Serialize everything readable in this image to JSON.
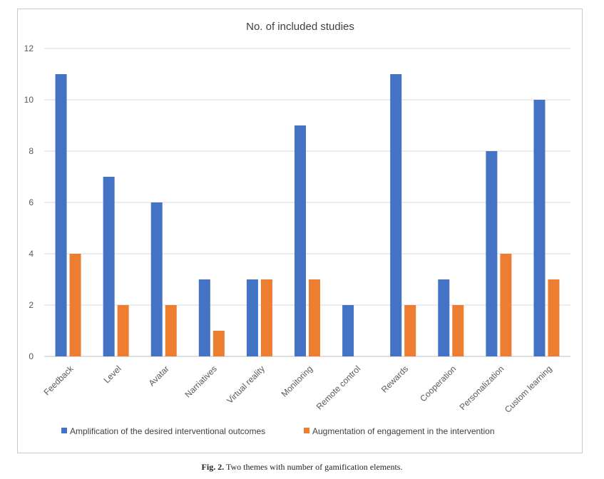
{
  "chart_data": {
    "type": "bar",
    "title": "No. of included studies",
    "categories": [
      "Feedback",
      "Level",
      "Avatar",
      "Narriatives",
      "Virtual reality",
      "Monitoring",
      "Remote control",
      "Rewards",
      "Cooperation",
      "Personalization",
      "Custom learning"
    ],
    "series": [
      {
        "name": "Amplification of the desired interventional outcomes",
        "color": "#4472C4",
        "values": [
          11,
          7,
          6,
          3,
          3,
          9,
          2,
          11,
          3,
          8,
          10
        ]
      },
      {
        "name": "Augmentation of engagement in the intervention",
        "color": "#ED7D31",
        "values": [
          4,
          2,
          2,
          1,
          3,
          3,
          0,
          2,
          2,
          4,
          3
        ]
      }
    ],
    "ylim": [
      0,
      12
    ],
    "yticks": [
      0,
      2,
      4,
      6,
      8,
      10,
      12
    ],
    "grid": true,
    "legend": "bottom"
  },
  "caption": {
    "label": "Fig. 2.",
    "text": "Two themes with number of gamification elements."
  }
}
